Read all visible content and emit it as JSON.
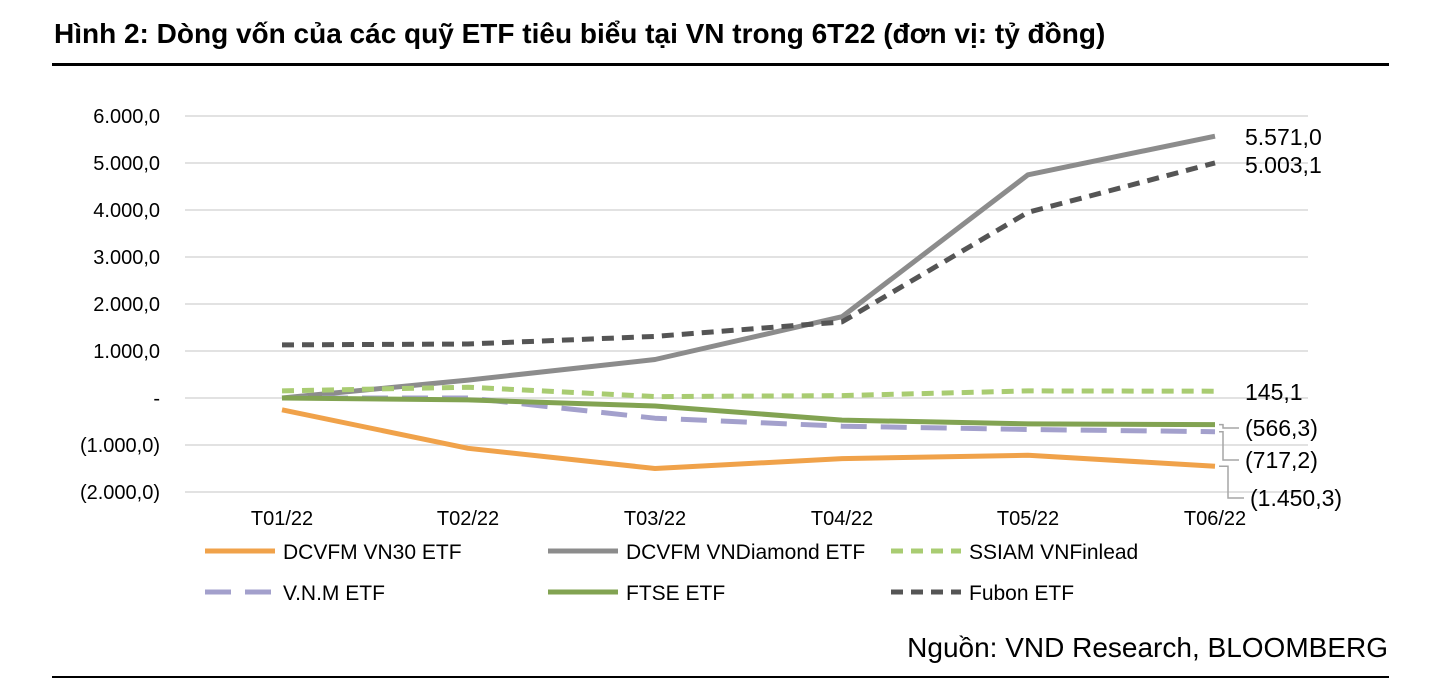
{
  "header": {
    "title": "Hình 2: Dòng vốn của các quỹ ETF tiêu biểu tại VN trong 6T22 (đơn vị: tỷ đồng)"
  },
  "footer": {
    "source": "Nguồn: VND Research, BLOOMBERG"
  },
  "chart_data": {
    "type": "line",
    "title": "Hình 2: Dòng vốn của các quỹ ETF tiêu biểu tại VN trong 6T22 (đơn vị: tỷ đồng)",
    "xlabel": "",
    "ylabel": "",
    "categories": [
      "T01/22",
      "T02/22",
      "T03/22",
      "T04/22",
      "T05/22",
      "T06/22"
    ],
    "ylim": [
      -2000,
      6000
    ],
    "yticks": [
      6000,
      5000,
      4000,
      3000,
      2000,
      1000,
      0,
      -1000,
      -2000
    ],
    "ytick_labels": [
      "6.000,0",
      "5.000,0",
      "4.000,0",
      "3.000,0",
      "2.000,0",
      "1.000,0",
      "-",
      "(1.000,0)",
      "(2.000,0)"
    ],
    "grid": true,
    "legend_position": "bottom",
    "series": [
      {
        "name": "DCVFM VN30 ETF",
        "color": "#F0A24A",
        "dash": "solid",
        "values": [
          -250,
          -1070,
          -1500,
          -1290,
          -1220,
          -1450.3
        ],
        "end_label": "(1.450,3)"
      },
      {
        "name": "DCVFM VNDiamond ETF",
        "color": "#8C8C8C",
        "dash": "solid",
        "values": [
          0,
          380,
          820,
          1730,
          4750,
          5571.0
        ],
        "end_label": "5.571,0"
      },
      {
        "name": "SSIAM VNFinlead",
        "color": "#A9CC72",
        "dash": "dashed",
        "values": [
          150,
          230,
          30,
          50,
          150,
          145.1
        ],
        "end_label": "145,1"
      },
      {
        "name": "V.N.M ETF",
        "color": "#A3A0CC",
        "dash": "longdash",
        "values": [
          0,
          0,
          -430,
          -600,
          -670,
          -717.2
        ],
        "end_label": "(717,2)"
      },
      {
        "name": "FTSE ETF",
        "color": "#82A352",
        "dash": "solid",
        "values": [
          0,
          -40,
          -170,
          -470,
          -550,
          -566.3
        ],
        "end_label": "(566,3)"
      },
      {
        "name": "Fubon ETF",
        "color": "#555555",
        "dash": "dashed",
        "values": [
          1130,
          1150,
          1310,
          1620,
          3950,
          5003.1
        ],
        "end_label": "5.003,1"
      }
    ]
  }
}
